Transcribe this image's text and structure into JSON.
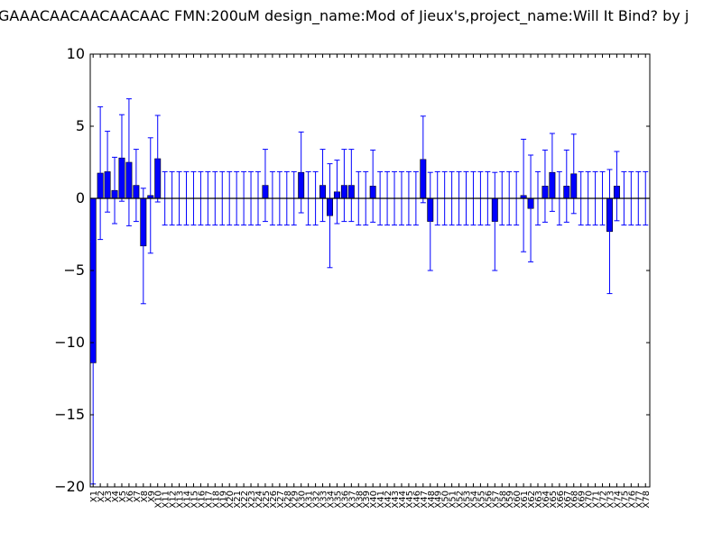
{
  "chart_data": {
    "type": "bar",
    "title": "GAAACAACAACAACAAC  FMN:200uM  design_name:Mod of Jieux's,project_name:Will It Bind? by j",
    "xlabel": "",
    "ylabel": "",
    "ylim": [
      -20,
      10
    ],
    "yticks": [
      -20,
      -15,
      -10,
      -5,
      0,
      5,
      10
    ],
    "ytick_labels": [
      "−20",
      "−15",
      "−10",
      "−5",
      "0",
      "5",
      "10"
    ],
    "grid": false,
    "bar_color": "#0000ff",
    "error_color": "#0000ff",
    "categories": [
      "X1",
      "X2",
      "X3",
      "X4",
      "X5",
      "X6",
      "X7",
      "X8",
      "X9",
      "X10",
      "X11",
      "X12",
      "X13",
      "X14",
      "X15",
      "X16",
      "X17",
      "X18",
      "X19",
      "X20",
      "X21",
      "X22",
      "X23",
      "X24",
      "X25",
      "X26",
      "X27",
      "X28",
      "X29",
      "X30",
      "X31",
      "X32",
      "X33",
      "X34",
      "X35",
      "X36",
      "X37",
      "X38",
      "X39",
      "X40",
      "X41",
      "X42",
      "X43",
      "X44",
      "X45",
      "X46",
      "X47",
      "X48",
      "X49",
      "X50",
      "X51",
      "X52",
      "X53",
      "X54",
      "X55",
      "X56",
      "X57",
      "X58",
      "X59",
      "X60",
      "X61",
      "X62",
      "X63",
      "X64",
      "X65",
      "X66",
      "X67",
      "X68",
      "X69",
      "X70",
      "X71",
      "X72",
      "X73",
      "X74",
      "X75",
      "X76",
      "X77",
      "X78"
    ],
    "values": [
      -11.4,
      1.75,
      1.85,
      0.55,
      2.8,
      2.5,
      0.9,
      -3.3,
      0.2,
      2.75,
      0,
      0,
      0,
      0,
      0,
      0,
      0,
      0,
      0,
      0,
      0,
      0,
      0,
      0,
      0.9,
      0,
      0,
      0,
      0,
      1.8,
      0,
      0,
      0.9,
      -1.2,
      0.45,
      0.9,
      0.9,
      0,
      0,
      0.85,
      0,
      0,
      0,
      0,
      0,
      0,
      2.7,
      -1.6,
      0,
      0,
      0,
      0,
      0,
      0,
      0,
      0,
      -1.6,
      0,
      0,
      0,
      0.2,
      -0.7,
      0,
      0.85,
      1.8,
      0,
      0.85,
      1.7,
      0,
      0,
      0,
      0,
      -2.3,
      0.85,
      0,
      0,
      0,
      0
    ],
    "errors": [
      8.4,
      4.6,
      2.8,
      2.3,
      3.0,
      4.4,
      2.5,
      4.0,
      4.0,
      3.0,
      1.85,
      1.85,
      1.85,
      1.85,
      1.85,
      1.85,
      1.85,
      1.85,
      1.85,
      1.85,
      1.85,
      1.85,
      1.85,
      1.85,
      2.5,
      1.85,
      1.85,
      1.85,
      1.85,
      2.8,
      1.85,
      1.85,
      2.5,
      3.6,
      2.2,
      2.5,
      2.5,
      1.85,
      1.85,
      2.5,
      1.85,
      1.85,
      1.85,
      1.85,
      1.85,
      1.85,
      3.0,
      3.4,
      1.85,
      1.85,
      1.85,
      1.85,
      1.85,
      1.85,
      1.85,
      1.85,
      3.4,
      1.85,
      1.85,
      1.85,
      3.9,
      3.7,
      1.85,
      2.5,
      2.7,
      1.85,
      2.5,
      2.75,
      1.85,
      1.85,
      1.85,
      1.85,
      4.3,
      2.4,
      1.85,
      1.85,
      1.85,
      1.85
    ]
  }
}
